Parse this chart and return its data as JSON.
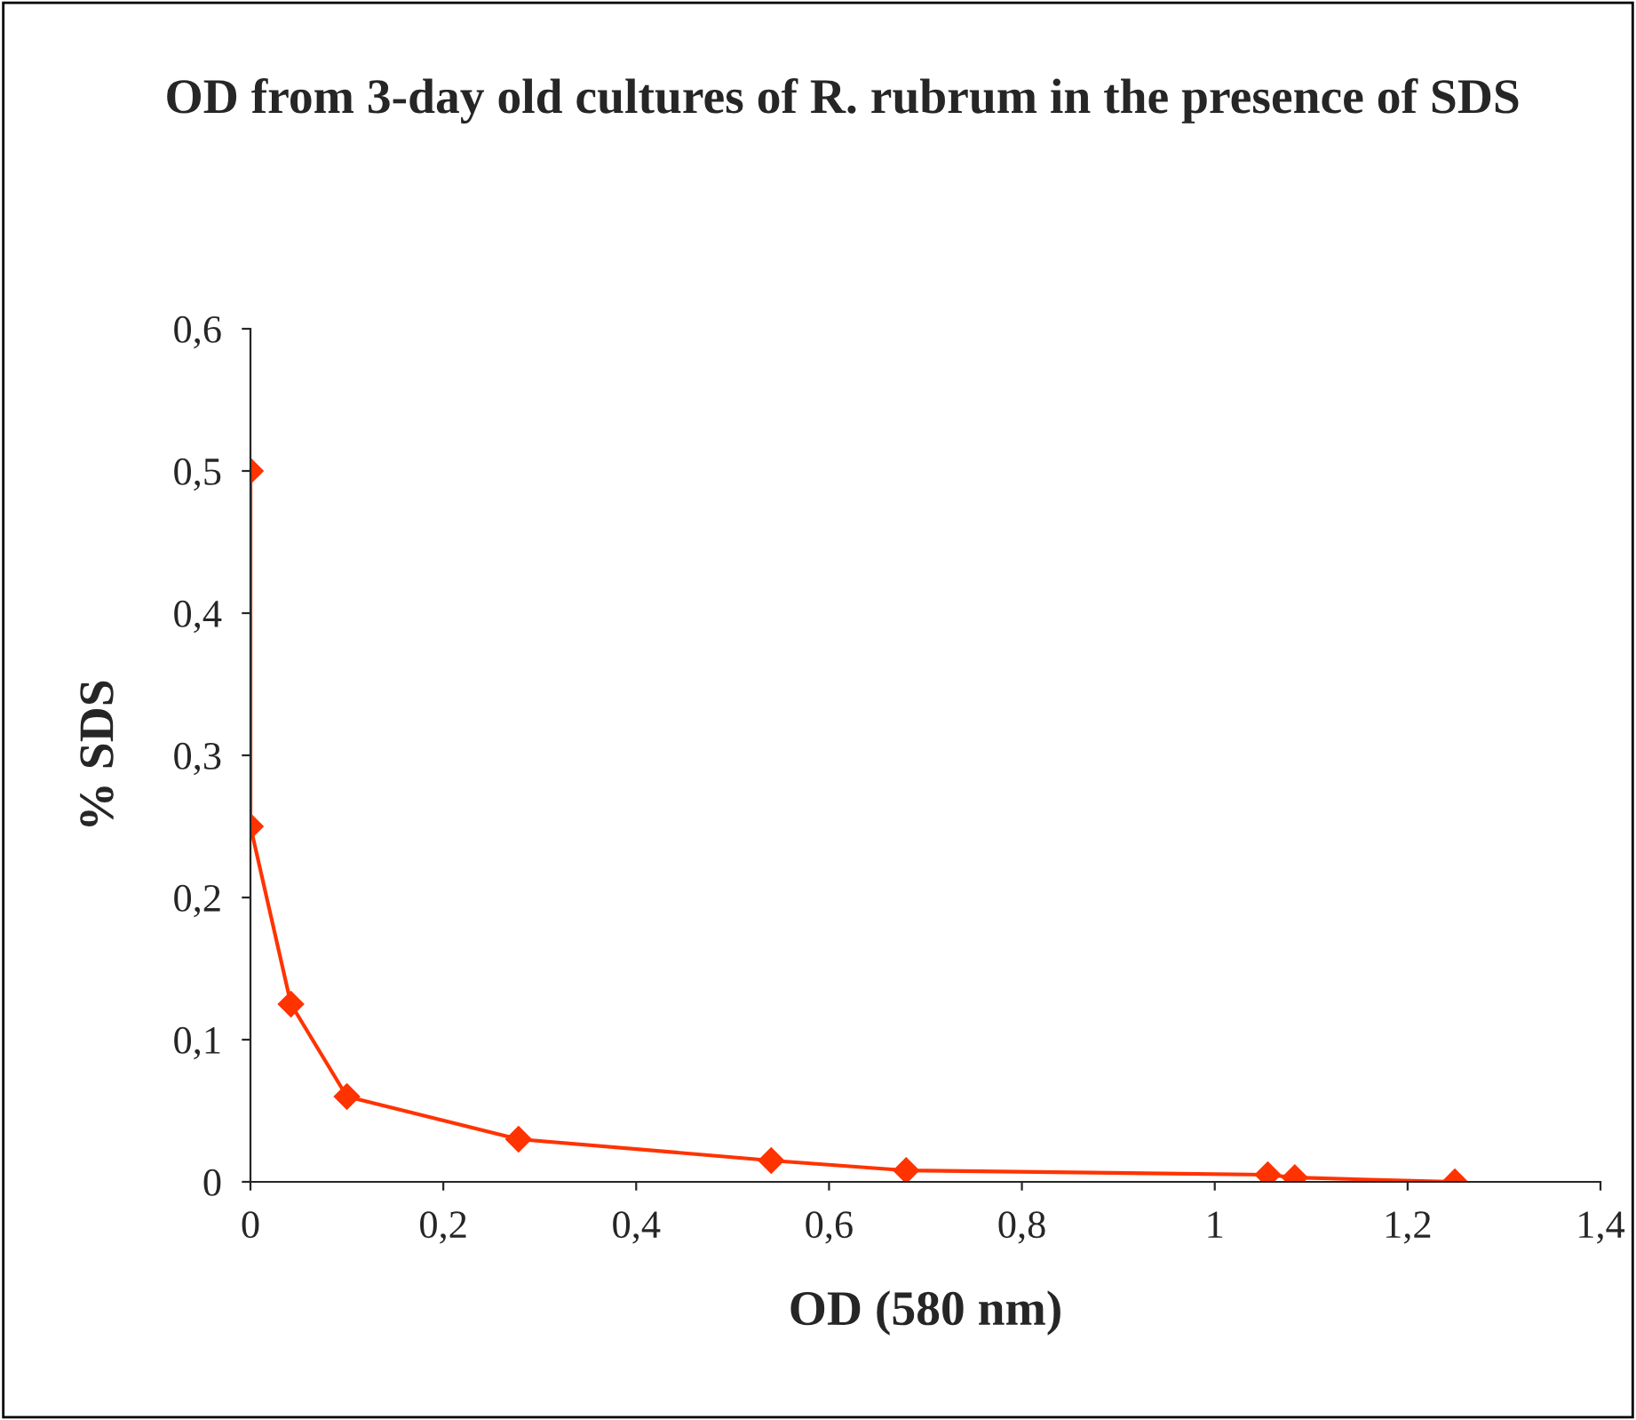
{
  "chart_data": {
    "type": "line",
    "title": "OD from 3-day old cultures of R. rubrum in the presence of SDS",
    "xlabel": "OD (580 nm)",
    "ylabel": "% SDS",
    "series": [
      {
        "color": "#ff3300",
        "x": [
          0,
          0,
          0.042,
          0.1,
          0.278,
          0.54,
          0.68,
          1.055,
          1.083,
          1.249
        ],
        "values": [
          0.5,
          0.25,
          0.125,
          0.06,
          0.03,
          0.015,
          0.008,
          0.005,
          0.003,
          0
        ]
      }
    ],
    "xlim": [
      0,
      1.4
    ],
    "ylim": [
      0,
      0.6
    ],
    "xticks": [
      0,
      {
        "value": 0.2,
        "label": "0,2"
      },
      {
        "value": 0.4,
        "label": "0,4"
      },
      {
        "value": 0.6,
        "label": "0,6"
      },
      {
        "value": 0.8,
        "label": "0,8"
      },
      1,
      {
        "value": 1.2,
        "label": "1,2"
      },
      {
        "value": 1.4,
        "label": "1,4"
      }
    ],
    "yticks": [
      0,
      {
        "value": 0.1,
        "label": "0,1"
      },
      {
        "value": 0.2,
        "label": "0,2"
      },
      {
        "value": 0.3,
        "label": "0,3"
      },
      {
        "value": 0.4,
        "label": "0,4"
      },
      {
        "value": 0.5,
        "label": "0,5"
      },
      {
        "value": 0.6,
        "label": "0,6"
      }
    ],
    "marker": "diamond",
    "line_style": "solid",
    "grid": false
  }
}
